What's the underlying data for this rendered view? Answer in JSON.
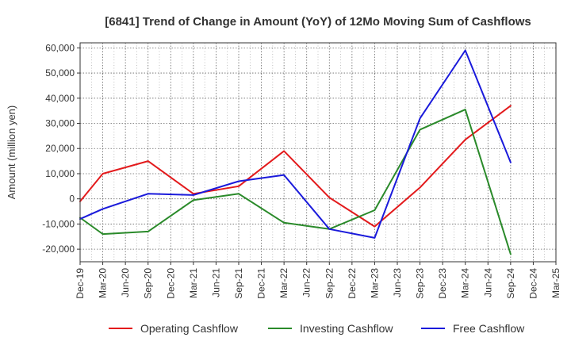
{
  "chart_data": {
    "type": "line",
    "title": "[6841]  Trend of Change in Amount (YoY) of 12Mo Moving Sum of Cashflows",
    "xlabel": "",
    "ylabel": "Amount (million yen)",
    "ylim": [
      -25000,
      62000
    ],
    "yticks": [
      -20000,
      -10000,
      0,
      10000,
      20000,
      30000,
      40000,
      50000,
      60000
    ],
    "ytick_labels": [
      "-20,000",
      "-10,000",
      "0",
      "10,000",
      "20,000",
      "30,000",
      "40,000",
      "50,000",
      "60,000"
    ],
    "categories": [
      "Dec-19",
      "Mar-20",
      "Jun-20",
      "Sep-20",
      "Dec-20",
      "Mar-21",
      "Jun-21",
      "Sep-21",
      "Dec-21",
      "Mar-22",
      "Jun-22",
      "Sep-22",
      "Dec-22",
      "Mar-23",
      "Jun-23",
      "Sep-23",
      "Dec-23",
      "Mar-24",
      "Jun-24",
      "Sep-24",
      "Dec-24",
      "Mar-25"
    ],
    "grid": true,
    "legend_position": "bottom",
    "series": [
      {
        "name": "Operating Cashflow",
        "color": "#e31a1c",
        "points": [
          [
            0,
            -1000
          ],
          [
            1,
            10000
          ],
          [
            3,
            15000
          ],
          [
            5,
            2000
          ],
          [
            7,
            5000
          ],
          [
            9,
            19000
          ],
          [
            11,
            500
          ],
          [
            13,
            -11000
          ],
          [
            15,
            4500
          ],
          [
            17,
            23500
          ],
          [
            19,
            37000
          ]
        ]
      },
      {
        "name": "Investing Cashflow",
        "color": "#2a8a2a",
        "points": [
          [
            0,
            -7500
          ],
          [
            1,
            -14000
          ],
          [
            3,
            -13000
          ],
          [
            5,
            -500
          ],
          [
            7,
            2000
          ],
          [
            9,
            -9500
          ],
          [
            11,
            -12000
          ],
          [
            13,
            -4500
          ],
          [
            15,
            27500
          ],
          [
            17,
            35500
          ],
          [
            19,
            -22000
          ]
        ]
      },
      {
        "name": "Free Cashflow",
        "color": "#1a1adb",
        "points": [
          [
            0,
            -8000
          ],
          [
            1,
            -4000
          ],
          [
            3,
            2000
          ],
          [
            5,
            1500
          ],
          [
            7,
            7000
          ],
          [
            9,
            9500
          ],
          [
            11,
            -12000
          ],
          [
            13,
            -15500
          ],
          [
            15,
            32000
          ],
          [
            17,
            59000
          ],
          [
            19,
            14500
          ]
        ]
      }
    ]
  }
}
